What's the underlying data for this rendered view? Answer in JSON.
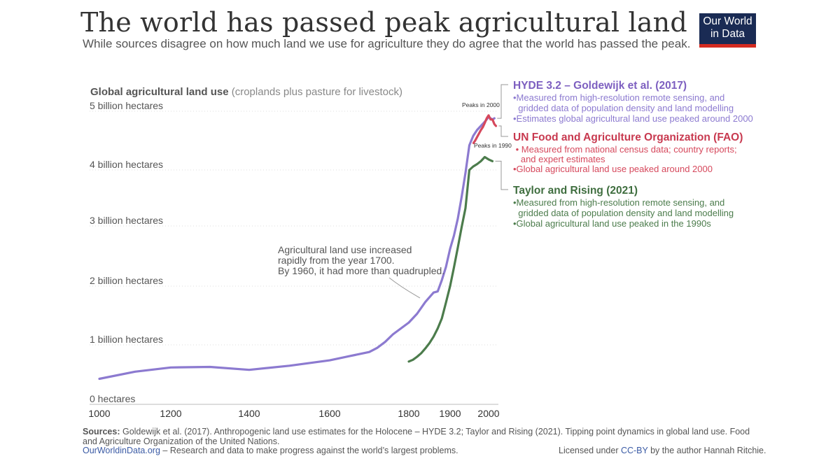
{
  "header": {
    "title": "The world has passed peak agricultural land",
    "subtitle": "While sources disagree on how much land we use for agriculture they do agree that the world has passed the peak.",
    "logo_line1": "Our World",
    "logo_line2": "in Data"
  },
  "chart_data": {
    "type": "line",
    "ylabel_bold": "Global agricultural land use",
    "ylabel_light": "(croplands plus pasture for livestock)",
    "x_ticks": [
      1000,
      1200,
      1400,
      1600,
      1800,
      1900,
      2000
    ],
    "x_tick_labels": [
      "1000",
      "1200",
      "1400",
      "1600",
      "1800",
      "1900",
      "2000"
    ],
    "y_ticks": [
      0,
      1,
      2,
      3,
      4,
      5
    ],
    "y_tick_labels": [
      "0 hectares",
      "1 billion hectares",
      "2 billion hectares",
      "3 billion hectares",
      "4 billion hectares",
      "5 billion hectares"
    ],
    "xlim": [
      1000,
      2020
    ],
    "ylim": [
      0,
      5
    ],
    "grid": "horizontal dotted",
    "legend_placement": "right",
    "series": [
      {
        "name": "HYDE 3.2 – Goldewijk et al. (2017)",
        "color": "#8c7ad0",
        "x": [
          1000,
          1100,
          1200,
          1300,
          1400,
          1500,
          1600,
          1650,
          1700,
          1720,
          1740,
          1760,
          1780,
          1800,
          1820,
          1840,
          1860,
          1870,
          1880,
          1890,
          1900,
          1910,
          1920,
          1930,
          1940,
          1950,
          1960,
          1970,
          1980,
          1990,
          2000,
          2010,
          2015
        ],
        "y": [
          0.43,
          0.55,
          0.62,
          0.63,
          0.58,
          0.65,
          0.74,
          0.81,
          0.88,
          0.95,
          1.05,
          1.18,
          1.28,
          1.38,
          1.53,
          1.73,
          1.89,
          1.91,
          2.1,
          2.32,
          2.62,
          2.84,
          3.13,
          3.52,
          3.95,
          4.42,
          4.58,
          4.68,
          4.75,
          4.82,
          4.9,
          4.86,
          4.88
        ]
      },
      {
        "name": "UN Food and Agriculture Organization (FAO)",
        "color": "#d6485c",
        "x": [
          1961,
          1965,
          1970,
          1975,
          1980,
          1985,
          1990,
          1995,
          2000,
          2005,
          2010,
          2015,
          2019
        ],
        "y": [
          4.46,
          4.5,
          4.56,
          4.62,
          4.68,
          4.73,
          4.8,
          4.88,
          4.93,
          4.86,
          4.86,
          4.78,
          4.75
        ]
      },
      {
        "name": "Taylor and Rising (2021)",
        "color": "#4c7c4c",
        "x": [
          1800,
          1810,
          1820,
          1830,
          1840,
          1850,
          1860,
          1870,
          1880,
          1890,
          1900,
          1910,
          1920,
          1930,
          1940,
          1950,
          1960,
          1970,
          1980,
          1990,
          2000,
          2010
        ],
        "y": [
          0.72,
          0.75,
          0.8,
          0.86,
          0.94,
          1.03,
          1.14,
          1.28,
          1.45,
          1.72,
          2.0,
          2.31,
          2.64,
          2.98,
          3.32,
          4.0,
          4.06,
          4.1,
          4.15,
          4.22,
          4.18,
          4.15
        ]
      }
    ],
    "annotations": {
      "peak_hyde": "Peaks in 2000",
      "peak_taylor": "Peaks in 1990",
      "note_line1": "Agricultural land use increased",
      "note_line2": "rapidly from the year 1700.",
      "note_line3": "By 1960, it had more than quadrupled."
    },
    "legend": [
      {
        "title": "HYDE 3.2 – Goldewijk et al. (2017)",
        "color": "#7d5fc0",
        "text_color": "#8c7ad0",
        "lines": [
          "•Measured from high-resolution remote sensing, and",
          "  gridded data of population density and land modelling",
          "•Estimates global agricultural land use peaked around 2000"
        ]
      },
      {
        "title": "UN Food and Agriculture Organization (FAO)",
        "color": "#c8394f",
        "text_color": "#d6485c",
        "lines": [
          " • Measured from national census data; country reports;",
          "   and expert estimates",
          "•Global agricultural land use peaked around 2000"
        ]
      },
      {
        "title": "Taylor and Rising (2021)",
        "color": "#3f6e3f",
        "text_color": "#4c7c4c",
        "lines": [
          "•Measured from high-resolution remote sensing, and",
          "  gridded data of population density and land modelling",
          "•Global agricultural land use peaked in the 1990s"
        ]
      }
    ]
  },
  "footer": {
    "sources_label": "Sources:",
    "sources_text": " Goldewijk et al. (2017). Anthropogenic land use estimates for the Holocene – HYDE 3.2;  Taylor and Rising (2021). Tipping point dynamics in global land use. Food and Agriculture Organization of the United Nations.",
    "owid_link": "OurWorldinData.org",
    "owid_text": " – Research and data to make progress against the world’s largest problems.",
    "license_prefix": "Licensed under ",
    "license_link": "CC-BY",
    "license_suffix": " by the author Hannah Ritchie."
  }
}
